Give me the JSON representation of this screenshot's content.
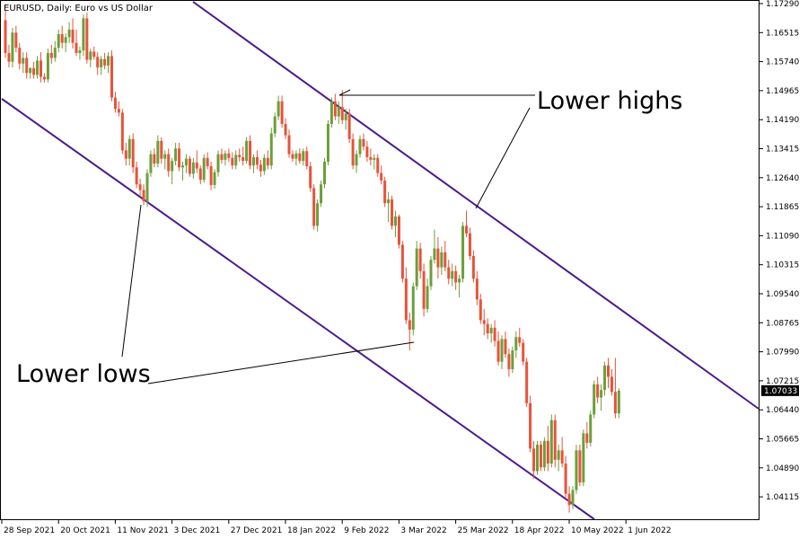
{
  "header": {
    "title": "EURUSD, Daily:  Euro vs US Dollar"
  },
  "chart_data": {
    "type": "candlestick",
    "symbol": "EURUSD",
    "timeframe": "Daily",
    "y_ticks": [
      "1.17290",
      "1.16515",
      "1.15740",
      "1.14965",
      "1.14190",
      "1.13415",
      "1.12640",
      "1.11865",
      "1.11090",
      "1.10315",
      "1.09540",
      "1.08765",
      "1.07990",
      "1.07215",
      "1.06440",
      "1.05665",
      "1.04890",
      "1.04115"
    ],
    "ylim": [
      1.0372,
      1.1729
    ],
    "x_ticks": [
      "28 Sep 2021",
      "20 Oct 2021",
      "11 Nov 2021",
      "3 Dec 2021",
      "27 Dec 2021",
      "18 Jan 2022",
      "9 Feb 2022",
      "3 Mar 2022",
      "25 Mar 2022",
      "18 Apr 2022",
      "10 May 2022",
      "1 Jun 2022"
    ],
    "x_tick_bar_index": [
      0,
      16,
      32,
      48,
      64,
      80,
      96,
      112,
      128,
      144,
      160,
      176
    ],
    "current_price": "1.07033",
    "annotations": [
      {
        "text": "Lower highs"
      },
      {
        "text": "Lower lows"
      }
    ],
    "colors": {
      "bull": "#6b9f3a",
      "bear": "#e8533a",
      "channel": "#4b1a8c",
      "price_tag_bg": "#000000",
      "annotation_line": "#000000"
    },
    "candles": [
      [
        1.1685,
        1.171,
        1.1585,
        1.1598
      ],
      [
        1.1598,
        1.162,
        1.156,
        1.1575
      ],
      [
        1.1575,
        1.1665,
        1.156,
        1.1652
      ],
      [
        1.1652,
        1.167,
        1.16,
        1.1612
      ],
      [
        1.1612,
        1.1625,
        1.1555,
        1.157
      ],
      [
        1.157,
        1.16,
        1.1545,
        1.1585
      ],
      [
        1.1585,
        1.16,
        1.153,
        1.1545
      ],
      [
        1.1545,
        1.156,
        1.153,
        1.1558
      ],
      [
        1.1558,
        1.1575,
        1.153,
        1.154
      ],
      [
        1.154,
        1.159,
        1.153,
        1.1578
      ],
      [
        1.1578,
        1.16,
        1.152,
        1.1535
      ],
      [
        1.1535,
        1.1545,
        1.152,
        1.1528
      ],
      [
        1.1528,
        1.161,
        1.152,
        1.1598
      ],
      [
        1.1598,
        1.162,
        1.157,
        1.1585
      ],
      [
        1.1585,
        1.163,
        1.1575,
        1.1612
      ],
      [
        1.1612,
        1.166,
        1.16,
        1.1648
      ],
      [
        1.1648,
        1.167,
        1.161,
        1.1625
      ],
      [
        1.1625,
        1.165,
        1.16,
        1.164
      ],
      [
        1.164,
        1.168,
        1.1625,
        1.166
      ],
      [
        1.166,
        1.169,
        1.161,
        1.1625
      ],
      [
        1.1625,
        1.166,
        1.159,
        1.1598
      ],
      [
        1.1598,
        1.1615,
        1.158,
        1.1605
      ],
      [
        1.1605,
        1.17,
        1.159,
        1.169
      ],
      [
        1.169,
        1.1705,
        1.157,
        1.158
      ],
      [
        1.158,
        1.161,
        1.156,
        1.1602
      ],
      [
        1.1602,
        1.1615,
        1.158,
        1.1588
      ],
      [
        1.1588,
        1.16,
        1.154,
        1.156
      ],
      [
        1.156,
        1.159,
        1.154,
        1.1582
      ],
      [
        1.1582,
        1.1598,
        1.1555,
        1.1565
      ],
      [
        1.1565,
        1.16,
        1.1545,
        1.159
      ],
      [
        1.159,
        1.1605,
        1.147,
        1.148
      ],
      [
        1.148,
        1.1495,
        1.144,
        1.145
      ],
      [
        1.145,
        1.147,
        1.143,
        1.144
      ],
      [
        1.144,
        1.145,
        1.133,
        1.134
      ],
      [
        1.134,
        1.136,
        1.13,
        1.1318
      ],
      [
        1.1318,
        1.138,
        1.13,
        1.137
      ],
      [
        1.137,
        1.1385,
        1.128,
        1.1295
      ],
      [
        1.1295,
        1.131,
        1.124,
        1.125
      ],
      [
        1.125,
        1.1265,
        1.122,
        1.1235
      ],
      [
        1.1235,
        1.125,
        1.1195,
        1.1205
      ],
      [
        1.1205,
        1.129,
        1.119,
        1.128
      ],
      [
        1.128,
        1.134,
        1.127,
        1.133
      ],
      [
        1.133,
        1.1345,
        1.1295,
        1.1305
      ],
      [
        1.1305,
        1.138,
        1.1295,
        1.1365
      ],
      [
        1.1365,
        1.1375,
        1.1305,
        1.1318
      ],
      [
        1.1318,
        1.134,
        1.129,
        1.133
      ],
      [
        1.133,
        1.1345,
        1.127,
        1.1285
      ],
      [
        1.1285,
        1.132,
        1.125,
        1.1312
      ],
      [
        1.1312,
        1.136,
        1.13,
        1.1345
      ],
      [
        1.1345,
        1.136,
        1.1285,
        1.1295
      ],
      [
        1.1295,
        1.131,
        1.126,
        1.13
      ],
      [
        1.13,
        1.133,
        1.128,
        1.1318
      ],
      [
        1.1318,
        1.1325,
        1.127,
        1.1278
      ],
      [
        1.1278,
        1.132,
        1.1265,
        1.1308
      ],
      [
        1.1308,
        1.134,
        1.128,
        1.1292
      ],
      [
        1.1292,
        1.13,
        1.125,
        1.1262
      ],
      [
        1.1262,
        1.133,
        1.1255,
        1.132
      ],
      [
        1.132,
        1.1335,
        1.129,
        1.1298
      ],
      [
        1.1298,
        1.131,
        1.1235,
        1.1248
      ],
      [
        1.1248,
        1.129,
        1.1238,
        1.1282
      ],
      [
        1.1282,
        1.134,
        1.127,
        1.133
      ],
      [
        1.133,
        1.1345,
        1.1305,
        1.1315
      ],
      [
        1.1315,
        1.134,
        1.13,
        1.1332
      ],
      [
        1.1332,
        1.1345,
        1.131,
        1.132
      ],
      [
        1.132,
        1.1335,
        1.129,
        1.13
      ],
      [
        1.13,
        1.134,
        1.129,
        1.1328
      ],
      [
        1.1328,
        1.1345,
        1.131,
        1.1322
      ],
      [
        1.1322,
        1.135,
        1.13,
        1.1312
      ],
      [
        1.1312,
        1.1375,
        1.1305,
        1.1365
      ],
      [
        1.1365,
        1.138,
        1.129,
        1.13
      ],
      [
        1.13,
        1.133,
        1.128,
        1.1322
      ],
      [
        1.1322,
        1.134,
        1.129,
        1.1302
      ],
      [
        1.1302,
        1.1315,
        1.127,
        1.1285
      ],
      [
        1.1285,
        1.133,
        1.1275,
        1.132
      ],
      [
        1.132,
        1.134,
        1.129,
        1.13
      ],
      [
        1.13,
        1.14,
        1.129,
        1.1385
      ],
      [
        1.1385,
        1.144,
        1.1375,
        1.143
      ],
      [
        1.143,
        1.1485,
        1.142,
        1.147
      ],
      [
        1.147,
        1.1485,
        1.14,
        1.141
      ],
      [
        1.141,
        1.1425,
        1.137,
        1.138
      ],
      [
        1.138,
        1.1395,
        1.132,
        1.133
      ],
      [
        1.133,
        1.134,
        1.131,
        1.1318
      ],
      [
        1.1318,
        1.134,
        1.13,
        1.1332
      ],
      [
        1.1332,
        1.1345,
        1.1305,
        1.1312
      ],
      [
        1.1312,
        1.1345,
        1.13,
        1.1338
      ],
      [
        1.1338,
        1.135,
        1.129,
        1.1298
      ],
      [
        1.1298,
        1.131,
        1.123,
        1.124
      ],
      [
        1.124,
        1.125,
        1.113,
        1.114
      ],
      [
        1.114,
        1.121,
        1.1125,
        1.12
      ],
      [
        1.12,
        1.126,
        1.119,
        1.125
      ],
      [
        1.125,
        1.132,
        1.124,
        1.131
      ],
      [
        1.131,
        1.142,
        1.13,
        1.141
      ],
      [
        1.141,
        1.148,
        1.14,
        1.147
      ],
      [
        1.147,
        1.149,
        1.142,
        1.143
      ],
      [
        1.143,
        1.147,
        1.141,
        1.1455
      ],
      [
        1.1455,
        1.15,
        1.141,
        1.142
      ],
      [
        1.142,
        1.145,
        1.1395,
        1.1438
      ],
      [
        1.1438,
        1.145,
        1.136,
        1.137
      ],
      [
        1.137,
        1.1385,
        1.129,
        1.13
      ],
      [
        1.13,
        1.134,
        1.128,
        1.133
      ],
      [
        1.133,
        1.138,
        1.132,
        1.137
      ],
      [
        1.137,
        1.1385,
        1.134,
        1.135
      ],
      [
        1.135,
        1.1365,
        1.131,
        1.1322
      ],
      [
        1.1322,
        1.1345,
        1.13,
        1.1315
      ],
      [
        1.1315,
        1.133,
        1.129,
        1.132
      ],
      [
        1.132,
        1.133,
        1.127,
        1.128
      ],
      [
        1.128,
        1.13,
        1.125,
        1.126
      ],
      [
        1.126,
        1.127,
        1.119,
        1.12
      ],
      [
        1.12,
        1.123,
        1.115,
        1.121
      ],
      [
        1.121,
        1.122,
        1.113,
        1.114
      ],
      [
        1.114,
        1.118,
        1.111,
        1.1165
      ],
      [
        1.1165,
        1.117,
        1.108,
        1.109
      ],
      [
        1.109,
        1.11,
        1.099,
        1.1
      ],
      [
        1.1,
        1.103,
        1.088,
        1.089
      ],
      [
        1.089,
        1.091,
        1.081,
        1.0865
      ],
      [
        1.0865,
        1.099,
        1.085,
        1.098
      ],
      [
        1.098,
        1.11,
        1.097,
        1.108
      ],
      [
        1.108,
        1.1095,
        1.1,
        1.102
      ],
      [
        1.102,
        1.104,
        1.09,
        1.092
      ],
      [
        1.092,
        1.1,
        1.091,
        1.098
      ],
      [
        1.098,
        1.106,
        1.097,
        1.105
      ],
      [
        1.105,
        1.113,
        1.104,
        1.108
      ],
      [
        1.108,
        1.111,
        1.1,
        1.103
      ],
      [
        1.103,
        1.1085,
        1.101,
        1.107
      ],
      [
        1.107,
        1.11,
        1.102,
        1.103
      ],
      [
        1.103,
        1.105,
        1.0985,
        1.1
      ],
      [
        1.1,
        1.104,
        1.098,
        1.102
      ],
      [
        1.102,
        1.1035,
        1.097,
        1.099
      ],
      [
        1.099,
        1.101,
        1.095,
        1.1
      ],
      [
        1.1,
        1.115,
        1.099,
        1.114
      ],
      [
        1.114,
        1.118,
        1.111,
        1.112
      ],
      [
        1.112,
        1.1135,
        1.105,
        1.106
      ],
      [
        1.106,
        1.1075,
        1.099,
        1.1
      ],
      [
        1.1,
        1.102,
        1.093,
        1.0945
      ],
      [
        1.0945,
        1.096,
        1.088,
        1.089
      ],
      [
        1.089,
        1.092,
        1.085,
        1.088
      ],
      [
        1.088,
        1.0895,
        1.084,
        1.0855
      ],
      [
        1.0855,
        1.088,
        1.083,
        1.087
      ],
      [
        1.087,
        1.089,
        1.082,
        1.0835
      ],
      [
        1.0835,
        1.086,
        1.077,
        1.078
      ],
      [
        1.078,
        1.085,
        1.076,
        1.084
      ],
      [
        1.084,
        1.086,
        1.079,
        1.08
      ],
      [
        1.08,
        1.0815,
        1.074,
        1.076
      ],
      [
        1.076,
        1.082,
        1.075,
        1.081
      ],
      [
        1.081,
        1.086,
        1.079,
        1.0845
      ],
      [
        1.0845,
        1.087,
        1.082,
        1.083
      ],
      [
        1.083,
        1.084,
        1.077,
        1.078
      ],
      [
        1.078,
        1.079,
        1.066,
        1.067
      ],
      [
        1.067,
        1.069,
        1.054,
        1.055
      ],
      [
        1.055,
        1.057,
        1.047,
        1.049
      ],
      [
        1.049,
        1.057,
        1.048,
        1.056
      ],
      [
        1.056,
        1.057,
        1.049,
        1.05
      ],
      [
        1.05,
        1.058,
        1.049,
        1.057
      ],
      [
        1.057,
        1.061,
        1.049,
        1.051
      ],
      [
        1.051,
        1.064,
        1.05,
        1.0625
      ],
      [
        1.0625,
        1.064,
        1.05,
        1.052
      ],
      [
        1.052,
        1.056,
        1.049,
        1.0545
      ],
      [
        1.0545,
        1.058,
        1.05,
        1.051
      ],
      [
        1.051,
        1.053,
        1.042,
        1.043
      ],
      [
        1.043,
        1.045,
        1.038,
        1.04
      ],
      [
        1.04,
        1.045,
        1.039,
        1.044
      ],
      [
        1.044,
        1.056,
        1.043,
        1.0545
      ],
      [
        1.0545,
        1.056,
        1.045,
        1.046
      ],
      [
        1.046,
        1.06,
        1.045,
        1.059
      ],
      [
        1.059,
        1.062,
        1.055,
        1.0565
      ],
      [
        1.0565,
        1.065,
        1.0555,
        1.064
      ],
      [
        1.064,
        1.073,
        1.063,
        1.072
      ],
      [
        1.072,
        1.074,
        1.067,
        1.0685
      ],
      [
        1.0685,
        1.072,
        1.065,
        1.0705
      ],
      [
        1.0705,
        1.078,
        1.069,
        1.077
      ],
      [
        1.077,
        1.079,
        1.071,
        1.074
      ],
      [
        1.074,
        1.076,
        1.069,
        1.07
      ],
      [
        1.07,
        1.079,
        1.063,
        1.0643
      ],
      [
        1.0643,
        1.071,
        1.063,
        1.0703
      ]
    ]
  }
}
